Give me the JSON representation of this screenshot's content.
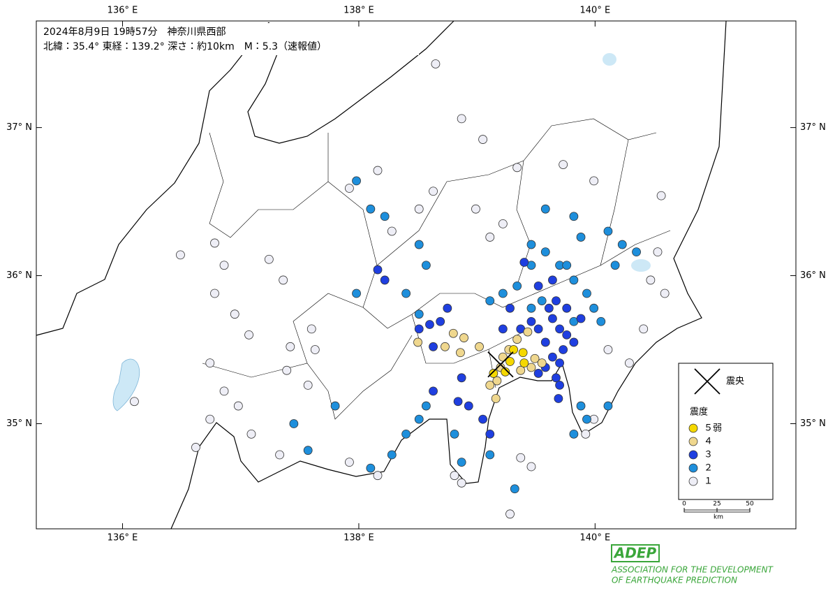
{
  "header": {
    "line1": "2024年8月9日 19時57分　神奈川県西部",
    "line2": "北緯：35.4°  東経：139.2°  深さ：約10km　M：5.3（速報値）"
  },
  "map": {
    "xlim": [
      135.27,
      141.7
    ],
    "ylim": [
      34.29,
      37.72
    ],
    "xticks": [
      {
        "value": 136,
        "label": "136° E"
      },
      {
        "value": 138,
        "label": "138° E"
      },
      {
        "value": 140,
        "label": "140° E"
      }
    ],
    "yticks": [
      {
        "value": 35,
        "label": "35° N"
      },
      {
        "value": 36,
        "label": "36° N"
      },
      {
        "value": 37,
        "label": "37° N"
      }
    ],
    "epicenter": {
      "lon": 139.2,
      "lat": 35.4,
      "label": "震央"
    },
    "intensity_title": "震度",
    "classes": [
      {
        "label": "５弱",
        "color": "#f5d800",
        "stations": [
          [
            139.31,
            35.5
          ],
          [
            139.24,
            35.35
          ],
          [
            139.14,
            35.34
          ],
          [
            139.39,
            35.48
          ],
          [
            139.4,
            35.41
          ],
          [
            139.28,
            35.42
          ]
        ]
      },
      {
        "label": "４",
        "color": "#efd78e",
        "stations": [
          [
            138.8,
            35.61
          ],
          [
            138.89,
            35.58
          ],
          [
            139.02,
            35.52
          ],
          [
            138.73,
            35.52
          ],
          [
            138.86,
            35.48
          ],
          [
            139.17,
            35.29
          ],
          [
            139.11,
            35.26
          ],
          [
            139.16,
            35.17
          ],
          [
            139.34,
            35.57
          ],
          [
            139.43,
            35.62
          ],
          [
            139.49,
            35.44
          ],
          [
            139.55,
            35.41
          ],
          [
            139.46,
            35.38
          ],
          [
            139.2,
            35.38
          ],
          [
            139.27,
            35.5
          ],
          [
            139.37,
            35.36
          ],
          [
            138.5,
            35.55
          ],
          [
            139.22,
            35.45
          ]
        ]
      },
      {
        "label": "３",
        "color": "#1f3fe0",
        "stations": [
          [
            139.64,
            35.45
          ],
          [
            139.7,
            35.41
          ],
          [
            139.58,
            35.38
          ],
          [
            139.67,
            35.31
          ],
          [
            139.52,
            35.34
          ],
          [
            139.76,
            35.6
          ],
          [
            139.7,
            35.64
          ],
          [
            139.82,
            35.55
          ],
          [
            139.64,
            35.71
          ],
          [
            139.52,
            35.64
          ],
          [
            139.58,
            35.55
          ],
          [
            139.73,
            35.5
          ],
          [
            139.46,
            35.69
          ],
          [
            139.37,
            35.64
          ],
          [
            138.51,
            35.64
          ],
          [
            138.6,
            35.67
          ],
          [
            138.69,
            35.69
          ],
          [
            138.75,
            35.78
          ],
          [
            138.63,
            35.52
          ],
          [
            138.87,
            35.31
          ],
          [
            138.84,
            35.15
          ],
          [
            138.93,
            35.12
          ],
          [
            139.05,
            35.03
          ],
          [
            139.11,
            34.93
          ],
          [
            138.63,
            35.22
          ],
          [
            138.16,
            36.04
          ],
          [
            138.22,
            35.97
          ],
          [
            139.22,
            35.64
          ],
          [
            139.28,
            35.78
          ],
          [
            139.76,
            35.78
          ],
          [
            139.64,
            35.97
          ],
          [
            139.52,
            35.93
          ],
          [
            139.4,
            36.09
          ],
          [
            139.7,
            35.26
          ],
          [
            139.69,
            35.17
          ],
          [
            139.88,
            35.71
          ],
          [
            139.61,
            35.78
          ],
          [
            139.67,
            35.83
          ]
        ]
      },
      {
        "label": "２",
        "color": "#1e8fdc",
        "stations": [
          [
            139.46,
            36.21
          ],
          [
            139.58,
            36.16
          ],
          [
            139.7,
            36.07
          ],
          [
            139.82,
            35.97
          ],
          [
            139.93,
            35.88
          ],
          [
            139.99,
            35.78
          ],
          [
            140.05,
            35.69
          ],
          [
            139.34,
            35.93
          ],
          [
            139.22,
            35.88
          ],
          [
            139.11,
            35.83
          ],
          [
            139.88,
            36.26
          ],
          [
            140.11,
            36.3
          ],
          [
            140.23,
            36.21
          ],
          [
            140.35,
            36.16
          ],
          [
            140.17,
            36.07
          ],
          [
            139.88,
            35.12
          ],
          [
            139.93,
            35.03
          ],
          [
            140.11,
            35.12
          ],
          [
            139.82,
            34.93
          ],
          [
            137.98,
            36.64
          ],
          [
            138.1,
            36.45
          ],
          [
            138.22,
            36.4
          ],
          [
            138.51,
            36.21
          ],
          [
            138.57,
            36.07
          ],
          [
            137.98,
            35.88
          ],
          [
            138.4,
            35.88
          ],
          [
            138.51,
            35.74
          ],
          [
            138.57,
            35.12
          ],
          [
            138.51,
            35.03
          ],
          [
            138.4,
            34.93
          ],
          [
            138.28,
            34.79
          ],
          [
            138.1,
            34.7
          ],
          [
            137.57,
            34.82
          ],
          [
            137.8,
            35.12
          ],
          [
            137.45,
            35.0
          ],
          [
            138.81,
            34.93
          ],
          [
            138.87,
            34.74
          ],
          [
            139.11,
            34.79
          ],
          [
            139.32,
            34.56
          ],
          [
            139.82,
            36.4
          ],
          [
            139.58,
            36.45
          ],
          [
            139.46,
            36.07
          ],
          [
            139.55,
            35.83
          ],
          [
            139.46,
            35.78
          ],
          [
            139.82,
            35.69
          ],
          [
            139.76,
            36.07
          ]
        ]
      },
      {
        "label": "１",
        "color": "#eeeef6",
        "stations": [
          [
            138.65,
            37.43
          ],
          [
            138.87,
            37.06
          ],
          [
            139.05,
            36.92
          ],
          [
            139.34,
            36.73
          ],
          [
            139.73,
            36.75
          ],
          [
            139.99,
            36.64
          ],
          [
            140.56,
            36.54
          ],
          [
            138.16,
            36.71
          ],
          [
            137.92,
            36.59
          ],
          [
            136.78,
            36.22
          ],
          [
            136.86,
            36.07
          ],
          [
            136.49,
            36.14
          ],
          [
            136.78,
            35.88
          ],
          [
            136.95,
            35.74
          ],
          [
            137.07,
            35.6
          ],
          [
            137.24,
            36.11
          ],
          [
            137.36,
            35.97
          ],
          [
            137.42,
            35.52
          ],
          [
            137.6,
            35.64
          ],
          [
            136.74,
            35.41
          ],
          [
            136.86,
            35.22
          ],
          [
            136.98,
            35.12
          ],
          [
            137.09,
            34.93
          ],
          [
            137.33,
            34.79
          ],
          [
            137.92,
            34.74
          ],
          [
            138.16,
            34.65
          ],
          [
            136.1,
            35.15
          ],
          [
            140.11,
            35.5
          ],
          [
            140.29,
            35.41
          ],
          [
            140.41,
            35.64
          ],
          [
            140.59,
            35.88
          ],
          [
            140.47,
            35.97
          ],
          [
            140.53,
            36.16
          ],
          [
            139.99,
            35.03
          ],
          [
            139.92,
            34.93
          ],
          [
            139.37,
            34.77
          ],
          [
            139.46,
            34.71
          ],
          [
            138.81,
            34.65
          ],
          [
            138.87,
            34.6
          ],
          [
            139.11,
            36.26
          ],
          [
            139.22,
            36.35
          ],
          [
            138.99,
            36.45
          ],
          [
            138.63,
            36.57
          ],
          [
            138.51,
            36.45
          ],
          [
            138.28,
            36.3
          ],
          [
            137.63,
            35.5
          ],
          [
            137.39,
            35.36
          ],
          [
            137.57,
            35.26
          ],
          [
            136.74,
            35.03
          ],
          [
            136.62,
            34.84
          ],
          [
            139.28,
            34.39
          ]
        ]
      }
    ],
    "scale": {
      "ticks": [
        0,
        25,
        50
      ],
      "unit": "km"
    }
  },
  "logo": {
    "mark": "ADEP",
    "line1": "ASSOCIATION FOR THE DEVELOPMENT",
    "line2": "OF EARTHQUAKE PREDICTION"
  }
}
